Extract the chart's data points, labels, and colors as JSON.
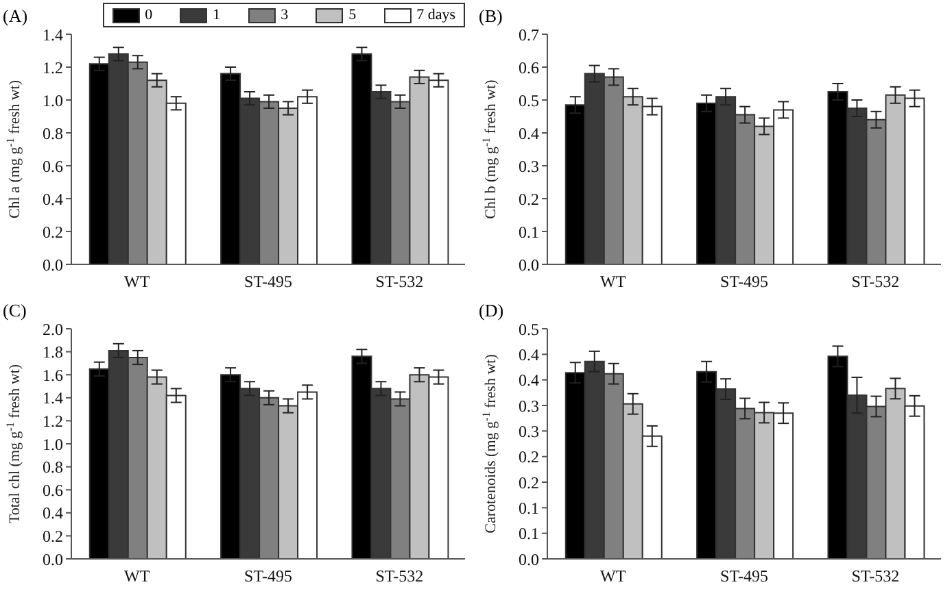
{
  "chart_data": [
    {
      "type": "bar",
      "title": "(A)",
      "ylabel": "Chl a (mg g$^{-1}$ fresh wt)",
      "categories": [
        "WT",
        "ST-495",
        "ST-532"
      ],
      "legend": "top right",
      "ylim": [
        0,
        1.4
      ],
      "yticks": [
        {
          "value": 0,
          "label": "0.0"
        },
        {
          "value": 0.2,
          "label": "0.2"
        },
        {
          "value": 0.4,
          "label": "0.4"
        },
        {
          "value": 0.6,
          "label": "0.6"
        },
        {
          "value": 0.8,
          "label": "0.8"
        },
        {
          "value": 1,
          "label": "1.0"
        },
        {
          "value": 1.2,
          "label": "1.2"
        },
        {
          "value": 1.4,
          "label": "1.4"
        }
      ],
      "series": [
        {
          "name": "0",
          "color": "#000000",
          "values": [
            1.22,
            1.16,
            1.28
          ],
          "errors": [
            0.04,
            0.04,
            0.04
          ]
        },
        {
          "name": "1",
          "color": "#3a3a3a",
          "values": [
            1.28,
            1.01,
            1.05
          ],
          "errors": [
            0.04,
            0.04,
            0.04
          ]
        },
        {
          "name": "3",
          "color": "#808080",
          "values": [
            1.23,
            0.99,
            0.99
          ],
          "errors": [
            0.04,
            0.04,
            0.04
          ]
        },
        {
          "name": "5",
          "color": "#c0c0c0",
          "values": [
            1.12,
            0.95,
            1.14
          ],
          "errors": [
            0.04,
            0.04,
            0.04
          ]
        },
        {
          "name": "7 days",
          "color": "#ffffff",
          "values": [
            0.98,
            1.02,
            1.12
          ],
          "errors": [
            0.04,
            0.04,
            0.04
          ]
        }
      ]
    },
    {
      "type": "bar",
      "title": "(B)",
      "ylabel": "Chl b (mg g$^{-1}$ fresh wt)",
      "categories": [
        "WT",
        "ST-495",
        "ST-532"
      ],
      "ylim": [
        0,
        0.7
      ],
      "yticks": [
        {
          "value": 0,
          "label": "0.0"
        },
        {
          "value": 0.1,
          "label": "0.1"
        },
        {
          "value": 0.2,
          "label": "0.2"
        },
        {
          "value": 0.3,
          "label": "0.3"
        },
        {
          "value": 0.4,
          "label": "0.4"
        },
        {
          "value": 0.5,
          "label": "0.5"
        },
        {
          "value": 0.6,
          "label": "0.6"
        },
        {
          "value": 0.7,
          "label": "0.7"
        }
      ],
      "series": [
        {
          "color": "#000000",
          "values": [
            0.485,
            0.49,
            0.525
          ],
          "errors": [
            0.025,
            0.025,
            0.025
          ]
        },
        {
          "color": "#3a3a3a",
          "values": [
            0.58,
            0.51,
            0.475
          ],
          "errors": [
            0.025,
            0.025,
            0.025
          ]
        },
        {
          "color": "#808080",
          "values": [
            0.57,
            0.455,
            0.44
          ],
          "errors": [
            0.025,
            0.025,
            0.025
          ]
        },
        {
          "color": "#c0c0c0",
          "values": [
            0.51,
            0.42,
            0.515
          ],
          "errors": [
            0.025,
            0.025,
            0.025
          ]
        },
        {
          "color": "#ffffff",
          "values": [
            0.48,
            0.47,
            0.505
          ],
          "errors": [
            0.025,
            0.025,
            0.025
          ]
        }
      ]
    },
    {
      "type": "bar",
      "title": "(C)",
      "ylabel": "Total chl (mg g$^{-1}$ fresh wt)",
      "categories": [
        "WT",
        "ST-495",
        "ST-532"
      ],
      "ylim": [
        0,
        2
      ],
      "yticks": [
        {
          "value": 0,
          "label": "0.0"
        },
        {
          "value": 0.2,
          "label": "0.2"
        },
        {
          "value": 0.4,
          "label": "0.4"
        },
        {
          "value": 0.6,
          "label": "0.6"
        },
        {
          "value": 0.8,
          "label": "0.8"
        },
        {
          "value": 1,
          "label": "1.0"
        },
        {
          "value": 1.2,
          "label": "1.2"
        },
        {
          "value": 1.4,
          "label": "1.4"
        },
        {
          "value": 1.6,
          "label": "1.6"
        },
        {
          "value": 1.8,
          "label": "1.8"
        },
        {
          "value": 2,
          "label": "2.0"
        }
      ],
      "series": [
        {
          "color": "#000000",
          "values": [
            1.65,
            1.6,
            1.76
          ],
          "errors": [
            0.06,
            0.06,
            0.06
          ]
        },
        {
          "color": "#3a3a3a",
          "values": [
            1.81,
            1.48,
            1.48
          ],
          "errors": [
            0.06,
            0.06,
            0.06
          ]
        },
        {
          "color": "#808080",
          "values": [
            1.75,
            1.4,
            1.39
          ],
          "errors": [
            0.06,
            0.06,
            0.06
          ]
        },
        {
          "color": "#c0c0c0",
          "values": [
            1.58,
            1.33,
            1.6
          ],
          "errors": [
            0.06,
            0.06,
            0.06
          ]
        },
        {
          "color": "#ffffff",
          "values": [
            1.42,
            1.45,
            1.58
          ],
          "errors": [
            0.06,
            0.06,
            0.06
          ]
        }
      ]
    },
    {
      "type": "bar",
      "title": "(D)",
      "ylabel": "Carotenoids (mg g$^{-1}$ fresh wt)",
      "categories": [
        "WT",
        "ST-495",
        "ST-532"
      ],
      "ylim": [
        0,
        0.45
      ],
      "yticks": [
        {
          "value": 0,
          "label": "0.0"
        },
        {
          "value": 0.05,
          "label": "0.1"
        },
        {
          "value": 0.1,
          "label": "0.1"
        },
        {
          "value": 0.15,
          "label": "0.2"
        },
        {
          "value": 0.2,
          "label": "0.2"
        },
        {
          "value": 0.25,
          "label": "0.3"
        },
        {
          "value": 0.3,
          "label": "0.3"
        },
        {
          "value": 0.35,
          "label": "0.4"
        },
        {
          "value": 0.4,
          "label": "0.4"
        },
        {
          "value": 0.45,
          "label": "0.5"
        }
      ],
      "series": [
        {
          "color": "#000000",
          "values": [
            0.364,
            0.366,
            0.396
          ],
          "errors": [
            0.02,
            0.02,
            0.02
          ]
        },
        {
          "color": "#3a3a3a",
          "values": [
            0.386,
            0.332,
            0.32
          ],
          "errors": [
            0.02,
            0.02,
            0.035
          ]
        },
        {
          "color": "#808080",
          "values": [
            0.362,
            0.294,
            0.298
          ],
          "errors": [
            0.02,
            0.02,
            0.02
          ]
        },
        {
          "color": "#c0c0c0",
          "values": [
            0.303,
            0.286,
            0.333
          ],
          "errors": [
            0.02,
            0.02,
            0.02
          ]
        },
        {
          "color": "#ffffff",
          "values": [
            0.24,
            0.285,
            0.299
          ],
          "errors": [
            0.02,
            0.02,
            0.02
          ]
        }
      ]
    }
  ]
}
